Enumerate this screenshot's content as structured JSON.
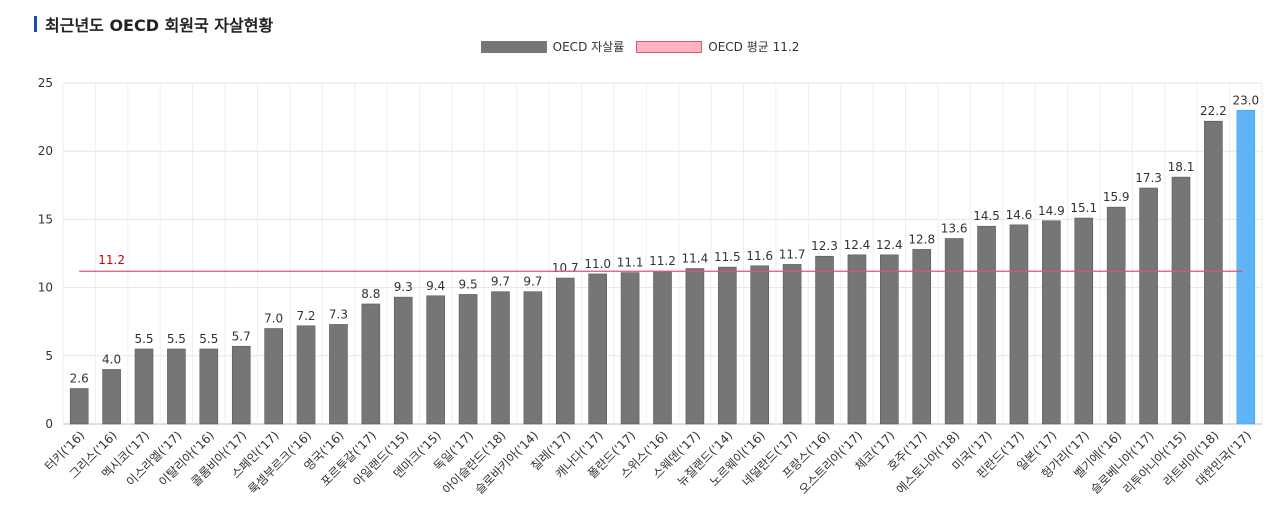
{
  "title": "최근년도 OECD 회원국 자살현황",
  "colors": {
    "bar": "#767676",
    "highlight": "#5fb4f5",
    "avg_line": "#d25a78",
    "avg_label": "#cc0000",
    "title_accent": "#1a4fa0"
  },
  "legend": [
    {
      "label": "OECD 자살률",
      "swatch_fill": "#767676",
      "swatch_border": "#767676"
    },
    {
      "label": "OECD 평균 11.2",
      "swatch_fill": "#ffb3c2",
      "swatch_border": "#d25a78"
    }
  ],
  "chart_data": {
    "type": "bar",
    "title": "최근년도 OECD 회원국 자살현황",
    "xlabel": "",
    "ylabel": "",
    "ylim": [
      0,
      25
    ],
    "yticks": [
      0,
      5,
      10,
      15,
      20,
      25
    ],
    "grid": true,
    "legend_position": "top-center",
    "categories": [
      "터키('16)",
      "그리스('16)",
      "멕시코('17)",
      "이스라엘('17)",
      "이탈리아('16)",
      "콜롬비아('17)",
      "스페인('17)",
      "룩셈부르크('16)",
      "영국('16)",
      "포르투갈('17)",
      "아일랜드('15)",
      "덴마크('15)",
      "독일('17)",
      "아이슬란드('18)",
      "슬로바키아('14)",
      "칠레('17)",
      "캐나다('17)",
      "폴란드('17)",
      "스위스('16)",
      "스웨덴('17)",
      "뉴질랜드('14)",
      "노르웨이('16)",
      "네덜란드('17)",
      "프랑스('16)",
      "오스트리아('17)",
      "체코('17)",
      "호주('17)",
      "에스토니아('18)",
      "미국('17)",
      "핀란드('17)",
      "일본('17)",
      "헝가리('17)",
      "벨기에('16)",
      "슬로베니아('17)",
      "리투아니아('15)",
      "라트비아('18)",
      "대한민국('17)"
    ],
    "series": [
      {
        "name": "OECD 자살률",
        "values": [
          2.6,
          4.0,
          5.5,
          5.5,
          5.5,
          5.7,
          7.0,
          7.2,
          7.3,
          8.8,
          9.3,
          9.4,
          9.5,
          9.7,
          9.7,
          10.7,
          11.0,
          11.1,
          11.2,
          11.4,
          11.5,
          11.6,
          11.7,
          12.3,
          12.4,
          12.4,
          12.8,
          13.6,
          14.5,
          14.6,
          14.9,
          15.1,
          15.9,
          17.3,
          18.1,
          22.2,
          23.0
        ]
      }
    ],
    "value_labels": [
      "2.6",
      "4.0",
      "5.5",
      "5.5",
      "5.5",
      "5.7",
      "7.0",
      "7.2",
      "7.3",
      "8.8",
      "9.3",
      "9.4",
      "9.5",
      "9.7",
      "9.7",
      "10.7",
      "11.0",
      "11.1",
      "11.2",
      "11.4",
      "11.5",
      "11.6",
      "11.7",
      "12.3",
      "12.4",
      "12.4",
      "12.8",
      "13.6",
      "14.5",
      "14.6",
      "14.9",
      "15.1",
      "15.9",
      "17.3",
      "18.1",
      "22.2",
      "23.0"
    ],
    "highlight_index": 36,
    "average": {
      "value": 11.2,
      "label": "11.2"
    }
  }
}
